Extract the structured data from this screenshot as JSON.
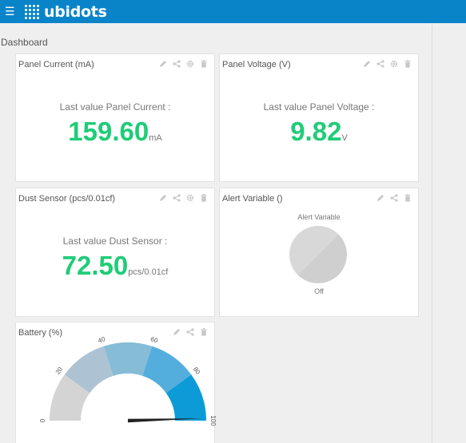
{
  "topbar": {
    "menu_icon": "hamburger-icon",
    "logo_text": "ubidots"
  },
  "page": {
    "label": "Dashboard"
  },
  "widgets": {
    "panel_current": {
      "title": "Panel Current (mA)",
      "label": "Last value Panel Current :",
      "value": "159.60",
      "unit": "mA"
    },
    "panel_voltage": {
      "title": "Panel Voltage (V)",
      "label": "Last value Panel Voltage :",
      "value": "9.82",
      "unit": "V"
    },
    "dust_sensor": {
      "title": "Dust Sensor (pcs/0.01cf)",
      "label": "Last value Dust Sensor :",
      "value": "72.50",
      "unit": "pcs/0.01cf"
    },
    "alert_variable": {
      "title": "Alert Variable ()",
      "caption": "Alert Variable",
      "state": "Off"
    },
    "battery": {
      "title": "Battery (%)",
      "min": 0,
      "max": 100,
      "value": 99,
      "ticks": [
        "0",
        "20",
        "40",
        "60",
        "80",
        "100"
      ],
      "band_colors": [
        "#d4d4d4",
        "#adc3d3",
        "#87bcd7",
        "#53aedd",
        "#0c9bd7"
      ],
      "needle_color": "#222222"
    }
  },
  "icons": {
    "edit": "pencil-icon",
    "share": "share-icon",
    "settings": "gear-icon",
    "delete": "trash-icon"
  }
}
